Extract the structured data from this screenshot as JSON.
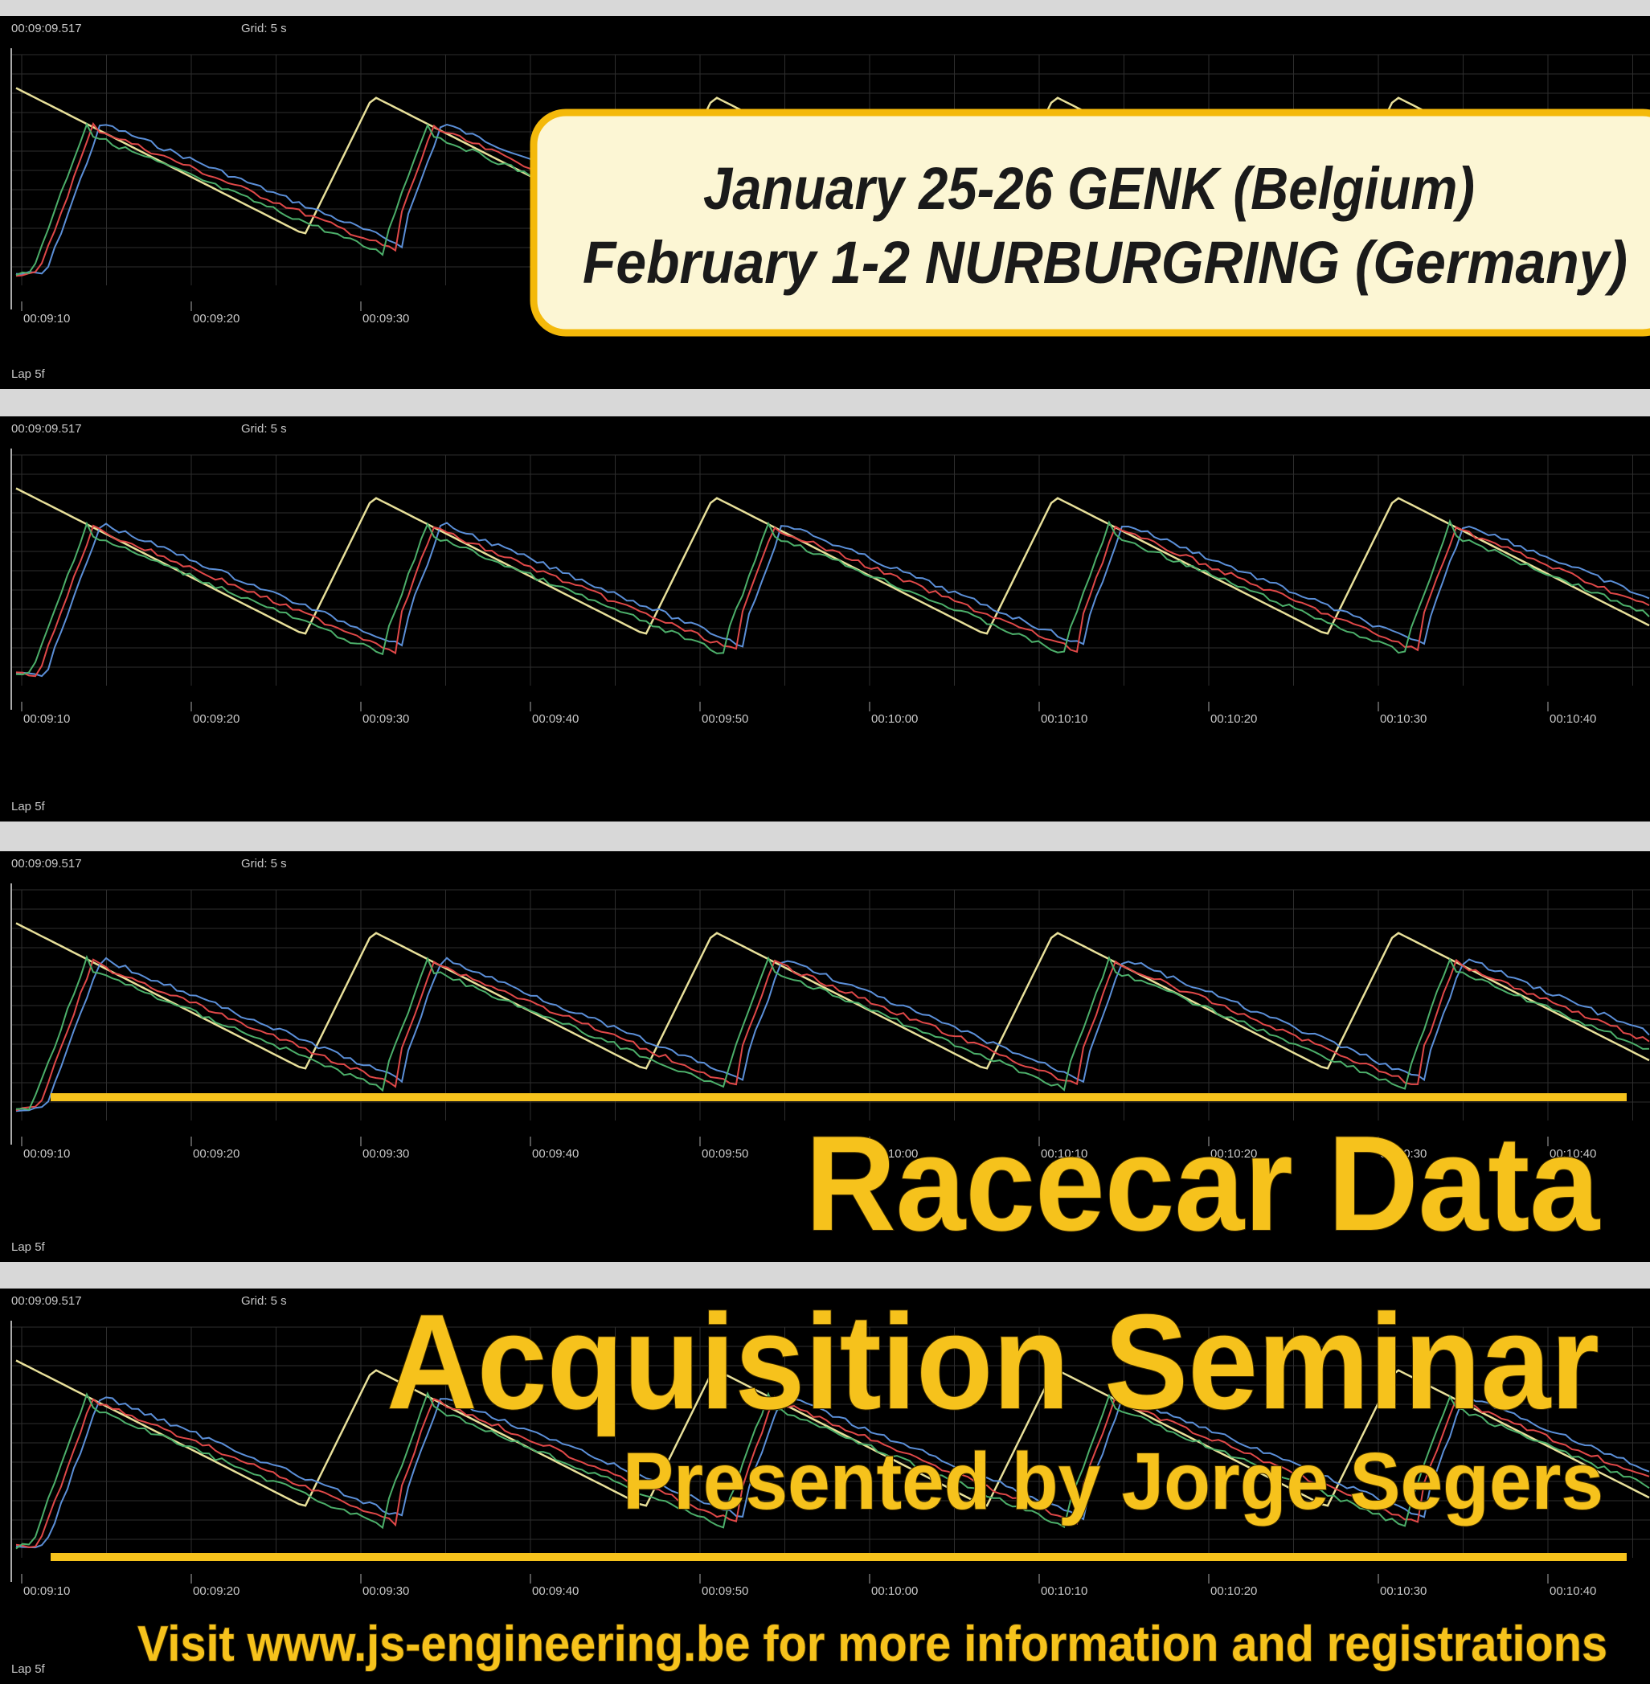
{
  "panels": [
    {
      "timestamp": "00:09:09.517",
      "grid": "Grid: 5 s",
      "time_labels": [
        "00:09:10",
        "00:09:20",
        "00:09:30"
      ],
      "lap": "Lap 5f"
    },
    {
      "timestamp": "00:09:09.517",
      "grid": "Grid: 5 s",
      "time_labels": [
        "00:09:10",
        "00:09:20",
        "00:09:30",
        "00:09:40",
        "00:09:50",
        "00:10:00",
        "00:10:10",
        "00:10:20",
        "00:10:30",
        "00:10:40"
      ],
      "lap": "Lap 5f"
    },
    {
      "timestamp": "00:09:09.517",
      "grid": "Grid: 5 s",
      "time_labels": [
        "00:09:10",
        "00:09:20",
        "00:09:30",
        "00:09:40",
        "00:09:50",
        "00:10:00",
        "00:10:10",
        "00:10:20",
        "00:10:30",
        "00:10:40"
      ],
      "lap": "Lap 5f"
    },
    {
      "timestamp": "00:09:09.517",
      "grid": "Grid: 5 s",
      "time_labels": [
        "00:09:10",
        "00:09:20",
        "00:09:30",
        "00:09:40",
        "00:09:50",
        "00:10:00",
        "00:10:10",
        "00:10:20",
        "00:10:30",
        "00:10:40"
      ],
      "lap": "Lap 5f"
    }
  ],
  "banner": {
    "line1": "January 25-26 GENK (Belgium)",
    "line2": "February 1-2 NURBURGRING (Germany)"
  },
  "poster": {
    "title1": "Racecar Data",
    "title2": "Acquisition Seminar",
    "presenter": "Presented by Jorge Segers",
    "footer": "Visit www.js-engineering.be for more information and registrations"
  }
}
